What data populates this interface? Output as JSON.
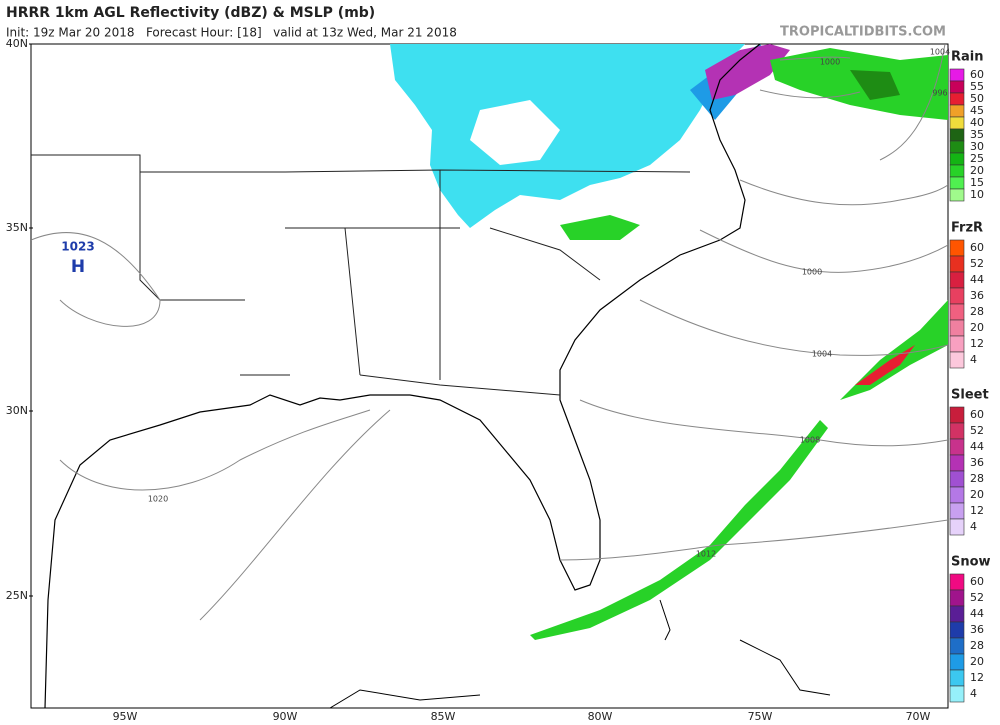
{
  "header": {
    "title": "HRRR 1km AGL Reflectivity (dBZ) & MSLP (mb)",
    "subtitle": "Init: 19z Mar 20 2018   Forecast Hour: [18]   valid at 13z Wed, Mar 21 2018",
    "credit": "TROPICALTIDBITS.COM"
  },
  "map": {
    "lat_labels": [
      "40N",
      "35N",
      "30N",
      "25N"
    ],
    "lon_labels": [
      "95W",
      "90W",
      "85W",
      "80W",
      "75W",
      "70W"
    ],
    "high": {
      "pressure": "1023",
      "symbol": "H"
    },
    "isobar_labels": [
      "1004",
      "996",
      "1000",
      "1000",
      "1004",
      "1008",
      "1012",
      "1020"
    ]
  },
  "legends": [
    {
      "title": "Rain",
      "levels": [
        60,
        55,
        50,
        45,
        40,
        35,
        30,
        25,
        20,
        15,
        10
      ],
      "colors": [
        "#e61ae6",
        "#c8005a",
        "#e61e32",
        "#f0a028",
        "#f0dc3c",
        "#1e6414",
        "#1e8c14",
        "#14b414",
        "#28d228",
        "#50f050",
        "#a0fa8c"
      ]
    },
    {
      "title": "FrzR",
      "levels": [
        60,
        52,
        44,
        36,
        28,
        20,
        12,
        4
      ],
      "colors": [
        "#ff5500",
        "#e83020",
        "#d82040",
        "#e84060",
        "#f06080",
        "#f080a0",
        "#f8a0c0",
        "#fcc8dc"
      ]
    },
    {
      "title": "Sleet",
      "levels": [
        60,
        52,
        44,
        36,
        28,
        20,
        12,
        4
      ],
      "colors": [
        "#c81e3c",
        "#d23264",
        "#c8328c",
        "#b432b4",
        "#a050d2",
        "#b478e6",
        "#c8a0f0",
        "#e6d2fa"
      ]
    },
    {
      "title": "Snow",
      "levels": [
        60,
        52,
        44,
        36,
        28,
        20,
        12,
        4
      ],
      "colors": [
        "#f00a82",
        "#a0148c",
        "#5a1e96",
        "#1e3caa",
        "#1e6ec8",
        "#1e9be6",
        "#3cc8f0",
        "#96f0fa"
      ]
    }
  ]
}
